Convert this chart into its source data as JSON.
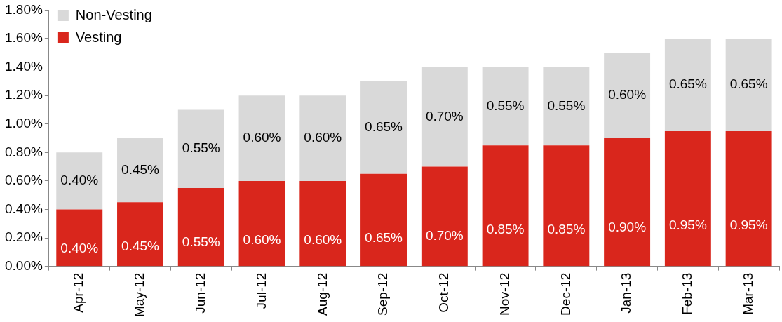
{
  "chart_data": {
    "type": "bar",
    "stacked": true,
    "categories": [
      "Apr-12",
      "May-12",
      "Jun-12",
      "Jul-12",
      "Aug-12",
      "Sep-12",
      "Oct-12",
      "Nov-12",
      "Dec-12",
      "Jan-13",
      "Feb-13",
      "Mar-13"
    ],
    "series": [
      {
        "name": "Vesting",
        "color": "#d9261c",
        "values": [
          0.4,
          0.45,
          0.55,
          0.6,
          0.6,
          0.65,
          0.7,
          0.85,
          0.85,
          0.9,
          0.95,
          0.95
        ],
        "value_labels": [
          "0.40%",
          "0.45%",
          "0.55%",
          "0.60%",
          "0.60%",
          "0.65%",
          "0.70%",
          "0.85%",
          "0.85%",
          "0.90%",
          "0.95%",
          "0.95%"
        ]
      },
      {
        "name": "Non-Vesting",
        "color": "#d9d9d9",
        "values": [
          0.4,
          0.45,
          0.55,
          0.6,
          0.6,
          0.65,
          0.7,
          0.55,
          0.55,
          0.6,
          0.65,
          0.65
        ],
        "value_labels": [
          "0.40%",
          "0.45%",
          "0.55%",
          "0.60%",
          "0.60%",
          "0.65%",
          "0.70%",
          "0.55%",
          "0.55%",
          "0.60%",
          "0.65%",
          "0.65%"
        ]
      }
    ],
    "ylim": [
      0,
      1.8
    ],
    "yticks": [
      {
        "value": 0,
        "label": "0.00%"
      },
      {
        "value": 0.2,
        "label": "0.20%"
      },
      {
        "value": 0.4,
        "label": "0.40%"
      },
      {
        "value": 0.6,
        "label": "0.60%"
      },
      {
        "value": 0.8,
        "label": "0.80%"
      },
      {
        "value": 1.0,
        "label": "1.00%"
      },
      {
        "value": 1.2,
        "label": "1.20%"
      },
      {
        "value": 1.4,
        "label": "1.40%"
      },
      {
        "value": 1.6,
        "label": "1.60%"
      },
      {
        "value": 1.8,
        "label": "1.80%"
      }
    ],
    "grid": false,
    "legend": "top left"
  }
}
